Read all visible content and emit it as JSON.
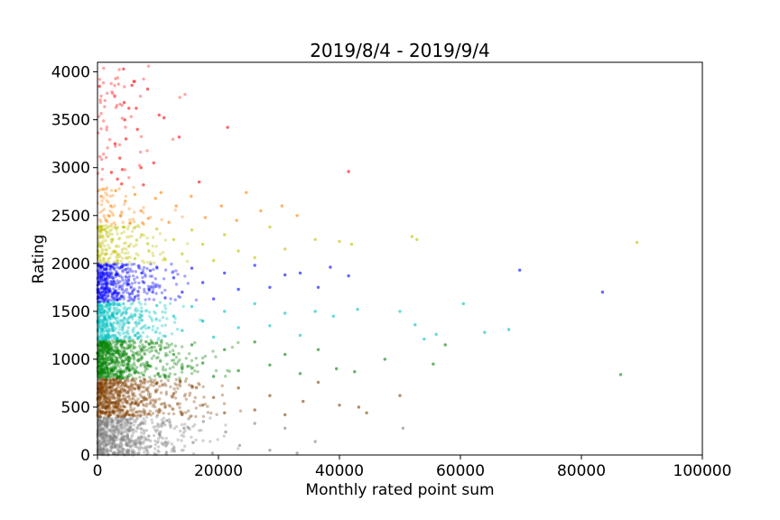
{
  "chart_data": {
    "type": "scatter",
    "title": "2019/8/4 - 2019/9/4",
    "xlabel": "Monthly rated point sum",
    "ylabel": "Rating",
    "xlim": [
      0,
      100000
    ],
    "ylim": [
      0,
      4100
    ],
    "xticks": [
      0,
      20000,
      40000,
      60000,
      80000,
      100000
    ],
    "yticks": [
      0,
      500,
      1000,
      1500,
      2000,
      2500,
      3000,
      3500,
      4000
    ],
    "grid": false,
    "legend": "none",
    "point_alpha": 0.35,
    "series": [
      {
        "color": "#808080",
        "rating_range": [
          0,
          399
        ],
        "points": [
          [
            600,
            350
          ],
          [
            1500,
            200
          ],
          [
            2500,
            120
          ],
          [
            3200,
            300
          ],
          [
            4200,
            60
          ],
          [
            5200,
            250
          ],
          [
            6300,
            150
          ],
          [
            7500,
            330
          ],
          [
            8800,
            90
          ],
          [
            10200,
            220
          ],
          [
            11500,
            360
          ],
          [
            12700,
            40
          ],
          [
            14300,
            280
          ],
          [
            15800,
            130
          ],
          [
            17500,
            350
          ],
          [
            19000,
            20
          ],
          [
            21200,
            240
          ],
          [
            23500,
            100
          ],
          [
            26000,
            330
          ],
          [
            28500,
            50
          ],
          [
            31000,
            280
          ],
          [
            33000,
            20
          ],
          [
            36000,
            140
          ],
          [
            50500,
            280
          ]
        ]
      },
      {
        "color": "#804000",
        "rating_range": [
          400,
          799
        ],
        "points": [
          [
            700,
            700
          ],
          [
            1500,
            550
          ],
          [
            2500,
            460
          ],
          [
            3300,
            760
          ],
          [
            4300,
            620
          ],
          [
            5200,
            420
          ],
          [
            6200,
            690
          ],
          [
            7300,
            560
          ],
          [
            8500,
            430
          ],
          [
            9800,
            750
          ],
          [
            11200,
            500
          ],
          [
            12600,
            640
          ],
          [
            14000,
            420
          ],
          [
            15600,
            720
          ],
          [
            17400,
            520
          ],
          [
            19200,
            600
          ],
          [
            21000,
            440
          ],
          [
            23300,
            700
          ],
          [
            26000,
            470
          ],
          [
            28500,
            620
          ],
          [
            31000,
            420
          ],
          [
            34000,
            560
          ],
          [
            36500,
            760
          ],
          [
            40000,
            520
          ],
          [
            43200,
            500
          ],
          [
            44500,
            440
          ],
          [
            50000,
            620
          ]
        ]
      },
      {
        "color": "#008000",
        "rating_range": [
          800,
          1199
        ],
        "points": [
          [
            700,
            1150
          ],
          [
            1500,
            900
          ],
          [
            2500,
            1050
          ],
          [
            3300,
            820
          ],
          [
            4300,
            1180
          ],
          [
            5200,
            980
          ],
          [
            6200,
            860
          ],
          [
            7300,
            1100
          ],
          [
            8500,
            930
          ],
          [
            9800,
            1170
          ],
          [
            11200,
            830
          ],
          [
            12600,
            1050
          ],
          [
            14000,
            900
          ],
          [
            15600,
            1150
          ],
          [
            17400,
            960
          ],
          [
            19200,
            820
          ],
          [
            21000,
            1100
          ],
          [
            23300,
            880
          ],
          [
            26000,
            1180
          ],
          [
            28500,
            940
          ],
          [
            31000,
            1050
          ],
          [
            33500,
            850
          ],
          [
            36500,
            1100
          ],
          [
            39500,
            900
          ],
          [
            42500,
            870
          ],
          [
            47500,
            1000
          ],
          [
            55500,
            950
          ],
          [
            57500,
            1150
          ],
          [
            86500,
            840
          ]
        ]
      },
      {
        "color": "#00C0C0",
        "rating_range": [
          1200,
          1599
        ],
        "points": [
          [
            700,
            1560
          ],
          [
            1500,
            1300
          ],
          [
            2500,
            1450
          ],
          [
            3300,
            1220
          ],
          [
            4300,
            1580
          ],
          [
            5200,
            1380
          ],
          [
            6200,
            1250
          ],
          [
            7300,
            1500
          ],
          [
            8500,
            1330
          ],
          [
            9800,
            1560
          ],
          [
            11200,
            1240
          ],
          [
            12600,
            1450
          ],
          [
            14000,
            1300
          ],
          [
            15600,
            1550
          ],
          [
            17400,
            1400
          ],
          [
            19200,
            1230
          ],
          [
            21000,
            1500
          ],
          [
            23300,
            1330
          ],
          [
            26000,
            1580
          ],
          [
            28500,
            1350
          ],
          [
            31000,
            1480
          ],
          [
            33500,
            1250
          ],
          [
            36000,
            1500
          ],
          [
            39000,
            1450
          ],
          [
            43000,
            1520
          ],
          [
            50000,
            1500
          ],
          [
            52500,
            1360
          ],
          [
            54000,
            1210
          ],
          [
            56000,
            1260
          ],
          [
            60500,
            1580
          ],
          [
            64000,
            1280
          ],
          [
            68000,
            1310
          ]
        ]
      },
      {
        "color": "#0000FF",
        "rating_range": [
          1600,
          1999
        ],
        "points": [
          [
            700,
            1960
          ],
          [
            1500,
            1700
          ],
          [
            2500,
            1850
          ],
          [
            3300,
            1620
          ],
          [
            4300,
            1980
          ],
          [
            5200,
            1780
          ],
          [
            6200,
            1650
          ],
          [
            7300,
            1900
          ],
          [
            8500,
            1730
          ],
          [
            9800,
            1960
          ],
          [
            11200,
            1640
          ],
          [
            12600,
            1850
          ],
          [
            14000,
            1700
          ],
          [
            15600,
            1950
          ],
          [
            17400,
            1800
          ],
          [
            19200,
            1630
          ],
          [
            21000,
            1900
          ],
          [
            23300,
            1730
          ],
          [
            26000,
            1980
          ],
          [
            28500,
            1750
          ],
          [
            31000,
            1880
          ],
          [
            33500,
            1900
          ],
          [
            36500,
            1750
          ],
          [
            38500,
            1960
          ],
          [
            41500,
            1870
          ],
          [
            69800,
            1930
          ],
          [
            83500,
            1700
          ]
        ]
      },
      {
        "color": "#C0C000",
        "rating_range": [
          2000,
          2399
        ],
        "points": [
          [
            700,
            2350
          ],
          [
            1500,
            2100
          ],
          [
            2500,
            2250
          ],
          [
            3300,
            2030
          ],
          [
            4300,
            2380
          ],
          [
            5200,
            2180
          ],
          [
            6200,
            2050
          ],
          [
            7300,
            2300
          ],
          [
            8500,
            2130
          ],
          [
            9800,
            2360
          ],
          [
            11200,
            2040
          ],
          [
            12600,
            2250
          ],
          [
            14000,
            2100
          ],
          [
            15600,
            2350
          ],
          [
            17400,
            2200
          ],
          [
            19200,
            2030
          ],
          [
            21000,
            2300
          ],
          [
            23300,
            2130
          ],
          [
            26000,
            2060
          ],
          [
            28500,
            2380
          ],
          [
            31000,
            2150
          ],
          [
            36000,
            2250
          ],
          [
            40000,
            2230
          ],
          [
            42000,
            2200
          ],
          [
            52000,
            2280
          ],
          [
            52800,
            2250
          ],
          [
            89200,
            2220
          ]
        ]
      },
      {
        "color": "#FF8000",
        "rating_range": [
          2400,
          2799
        ],
        "points": [
          [
            600,
            2700
          ],
          [
            1400,
            2450
          ],
          [
            2200,
            2600
          ],
          [
            3000,
            2760
          ],
          [
            3800,
            2500
          ],
          [
            4600,
            2650
          ],
          [
            5400,
            2420
          ],
          [
            6200,
            2720
          ],
          [
            7200,
            2550
          ],
          [
            8400,
            2470
          ],
          [
            9600,
            2680
          ],
          [
            10500,
            2740
          ],
          [
            11800,
            2430
          ],
          [
            13000,
            2600
          ],
          [
            15500,
            2700
          ],
          [
            17800,
            2480
          ],
          [
            20500,
            2600
          ],
          [
            23000,
            2450
          ],
          [
            24600,
            2740
          ],
          [
            27000,
            2550
          ],
          [
            30500,
            2600
          ],
          [
            33000,
            2500
          ]
        ]
      },
      {
        "color": "#FF0000",
        "rating_range": [
          2800,
          4100
        ],
        "points": [
          [
            2300,
            2950
          ],
          [
            2900,
            3250
          ],
          [
            3300,
            2880
          ],
          [
            3700,
            3100
          ],
          [
            4000,
            2830
          ],
          [
            4100,
            2980
          ],
          [
            4300,
            4030
          ],
          [
            4400,
            3680
          ],
          [
            4500,
            3500
          ],
          [
            4700,
            3300
          ],
          [
            5200,
            3620
          ],
          [
            5700,
            3860
          ],
          [
            6100,
            3900
          ],
          [
            6400,
            3620
          ],
          [
            6600,
            3400
          ],
          [
            7200,
            3000
          ],
          [
            7600,
            2820
          ],
          [
            8300,
            3820
          ],
          [
            9300,
            3050
          ],
          [
            10200,
            3550
          ],
          [
            11000,
            3520
          ],
          [
            13500,
            3320
          ],
          [
            16800,
            2850
          ],
          [
            21500,
            3420
          ],
          [
            41500,
            2960
          ]
        ]
      }
    ]
  }
}
